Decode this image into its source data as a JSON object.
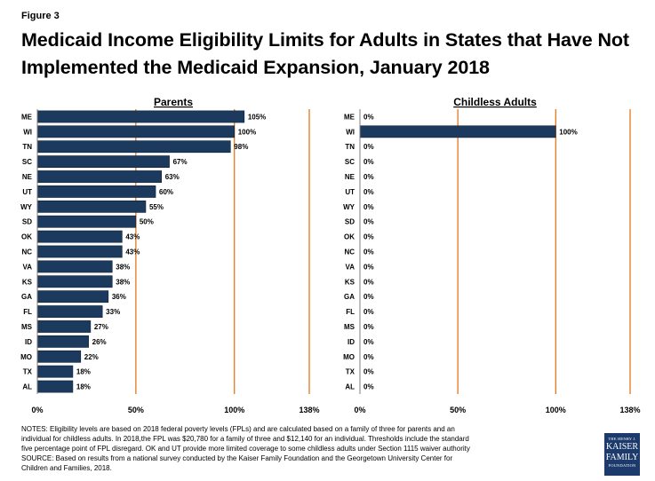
{
  "figure_label": "Figure 3",
  "title": "Medicaid Income Eligibility Limits for Adults in States that Have Not Implemented the Medicaid Expansion, January 2018",
  "colors": {
    "bar": "#1c3a5e",
    "gridline": "#e46c0a",
    "axis": "#7f7f7f"
  },
  "chart_data": [
    {
      "type": "bar",
      "orientation": "horizontal",
      "title": "Parents",
      "categories": [
        "ME",
        "WI",
        "TN",
        "SC",
        "NE",
        "UT",
        "WY",
        "SD",
        "OK",
        "NC",
        "VA",
        "KS",
        "GA",
        "FL",
        "MS",
        "ID",
        "MO",
        "TX",
        "AL"
      ],
      "values": [
        105,
        100,
        98,
        67,
        63,
        60,
        55,
        50,
        43,
        43,
        38,
        38,
        36,
        33,
        27,
        26,
        22,
        18,
        18
      ],
      "value_labels": [
        "105%",
        "100%",
        "98%",
        "67%",
        "63%",
        "60%",
        "55%",
        "50%",
        "43%",
        "43%",
        "38%",
        "38%",
        "36%",
        "33%",
        "27%",
        "26%",
        "22%",
        "18%",
        "18%"
      ],
      "xlim": [
        0,
        138
      ],
      "xticks": [
        0,
        50,
        100,
        138
      ],
      "xtick_labels": [
        "0%",
        "50%",
        "100%",
        "138%"
      ],
      "grid": "vertical at 50%, 100%, 138%"
    },
    {
      "type": "bar",
      "orientation": "horizontal",
      "title": "Childless Adults",
      "categories": [
        "ME",
        "WI",
        "TN",
        "SC",
        "NE",
        "UT",
        "WY",
        "SD",
        "OK",
        "NC",
        "VA",
        "KS",
        "GA",
        "FL",
        "MS",
        "ID",
        "MO",
        "TX",
        "AL"
      ],
      "values": [
        0,
        100,
        0,
        0,
        0,
        0,
        0,
        0,
        0,
        0,
        0,
        0,
        0,
        0,
        0,
        0,
        0,
        0,
        0
      ],
      "value_labels": [
        "0%",
        "100%",
        "0%",
        "0%",
        "0%",
        "0%",
        "0%",
        "0%",
        "0%",
        "0%",
        "0%",
        "0%",
        "0%",
        "0%",
        "0%",
        "0%",
        "0%",
        "0%",
        "0%"
      ],
      "xlim": [
        0,
        138
      ],
      "xticks": [
        0,
        50,
        100,
        138
      ],
      "xtick_labels": [
        "0%",
        "50%",
        "100%",
        "138%"
      ],
      "grid": "vertical at 50%, 100%, 138%"
    }
  ],
  "notes": {
    "line1": "NOTES: Eligibility levels are based on 2018 federal poverty levels (FPLs) and are calculated based on a family of three for parents and an",
    "line2": "individual for childless adults. In 2018,the FPL was $20,780 for a family of three and $12,140 for an individual. Thresholds include the standard",
    "line3": "five percentage point of FPL disregard. OK and UT provide more limited coverage to some childless adults under Section 1115 waiver authority",
    "line4": "SOURCE: Based on results from a national survey conducted by the Kaiser Family Foundation and the Georgetown University Center for",
    "line5": "Children and Families, 2018."
  },
  "logo": {
    "line1": "THE HENRY J.",
    "line2": "KAISER",
    "line3": "FAMILY",
    "line4": "FOUNDATION"
  }
}
